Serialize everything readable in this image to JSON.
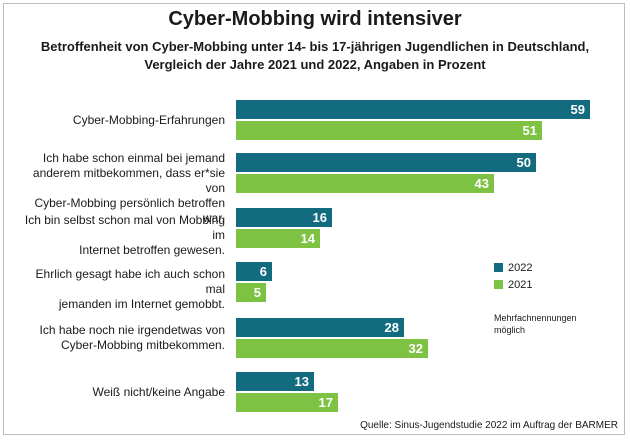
{
  "chart_data": {
    "type": "bar",
    "orientation": "horizontal",
    "title": "Cyber-Mobbing wird intensiver",
    "subtitle_lines": [
      "Betroffenheit von Cyber-Mobbing unter 14- bis 17-jährigen Jugendlichen in Deutschland,",
      "Vergleich der Jahre 2021 und 2022, Angaben in Prozent"
    ],
    "categories": [
      [
        "Cyber-Mobbing-Erfahrungen"
      ],
      [
        "Ich habe schon einmal bei jemand",
        "anderem mitbekommen, dass er*sie von",
        "Cyber-Mobbing persönlich betroffen war."
      ],
      [
        "Ich bin selbst schon mal von Mobbing im",
        "Internet betroffen gewesen."
      ],
      [
        "Ehrlich gesagt habe ich auch schon mal",
        "jemanden im Internet gemobbt."
      ],
      [
        "Ich habe noch nie irgendetwas von",
        "Cyber-Mobbing mitbekommen."
      ],
      [
        "Weiß nicht/keine Angabe"
      ]
    ],
    "series": [
      {
        "name": "2022",
        "color": "#136b80",
        "values": [
          59,
          50,
          16,
          6,
          28,
          13
        ]
      },
      {
        "name": "2021",
        "color": "#7dc242",
        "values": [
          51,
          43,
          14,
          5,
          32,
          17
        ]
      }
    ],
    "xlim": [
      0,
      60
    ],
    "grid": false,
    "legend_position": "right",
    "note": [
      "Mehrfachnennungen",
      "möglich"
    ],
    "source": "Quelle: Sinus-Jugendstudie 2022 im Auftrag der BARMER"
  }
}
